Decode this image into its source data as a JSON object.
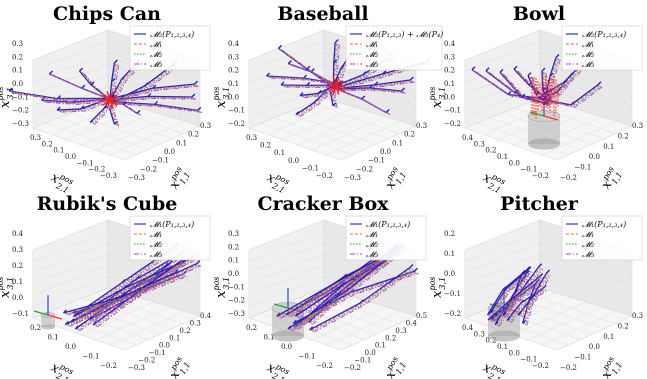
{
  "chart_data": [
    {
      "type": "line",
      "title": "Chips Can",
      "z_axis": {
        "base": "x",
        "sub": "3,1",
        "sup": "pos",
        "ticks": [
          "0.3",
          "0.2",
          "0.1",
          "0.0",
          "−0.1",
          "−0.2",
          "−0.3"
        ]
      },
      "y_axis": {
        "base": "x",
        "sub": "2,1",
        "sup": "pos",
        "ticks": [
          "0.3",
          "0.2",
          "0.1",
          "0.0",
          "−0.1",
          "−0.2",
          "−0.3"
        ]
      },
      "x_axis": {
        "base": "x",
        "sub": "1,1",
        "sup": "pos",
        "ticks": [
          "−0.3",
          "−0.2",
          "−0.1",
          "0.0",
          "0.1",
          "0.2",
          "0.3"
        ]
      },
      "legend": [
        "𝓜₂(P₁,₂,₃,₄)",
        "𝓜₁",
        "𝓜₂",
        "𝓜₃"
      ],
      "has_object": false
    },
    {
      "type": "line",
      "title": "Baseball",
      "z_axis": {
        "base": "x",
        "sub": "3,1",
        "sup": "pos",
        "ticks": [
          "0.4",
          "0.3",
          "0.2",
          "0.1",
          "0.0",
          "−0.1",
          "−0.2"
        ]
      },
      "y_axis": {
        "base": "x",
        "sub": "2,1",
        "sup": "pos",
        "ticks": [
          "0.3",
          "0.2",
          "0.1",
          "0.0",
          "−0.1",
          "−0.2"
        ]
      },
      "x_axis": {
        "base": "x",
        "sub": "1,1",
        "sup": "pos",
        "ticks": [
          "−0.3",
          "−0.2",
          "−0.1",
          "0.0",
          "0.1",
          "0.2",
          "0.3"
        ]
      },
      "legend": [
        "𝓜₂(P₁,₂,₃) + 𝓜₃(P₄)",
        "𝓜₁",
        "𝓜₂",
        "𝓜₃"
      ],
      "has_object": false
    },
    {
      "type": "line",
      "title": "Bowl",
      "z_axis": {
        "base": "x",
        "sub": "3,1",
        "sup": "pos",
        "ticks": [
          "0.4",
          "0.3",
          "0.2",
          "0.1",
          "0.0",
          "−0.1",
          "−0.2"
        ]
      },
      "y_axis": {
        "base": "x",
        "sub": "2,1",
        "sup": "pos",
        "ticks": [
          "0.4",
          "0.3",
          "0.2",
          "0.1",
          "0.0",
          "−0.1",
          "−0.2"
        ]
      },
      "x_axis": {
        "base": "x",
        "sub": "1,1",
        "sup": "pos",
        "ticks": [
          "−0.2",
          "−0.1",
          "0.0",
          "0.1",
          "0.2",
          "0.3"
        ]
      },
      "legend": [
        "𝓜₂(P₁,₂,₃,₄)",
        "𝓜₁",
        "𝓜₂",
        "𝓜₃"
      ],
      "has_object": true
    },
    {
      "type": "line",
      "title": "Rubik's Cube",
      "z_axis": {
        "base": "x",
        "sub": "3,1",
        "sup": "pos",
        "ticks": [
          "0.4",
          "0.3",
          "0.2",
          "0.1",
          "0.0",
          "−0.1"
        ]
      },
      "y_axis": {
        "base": "x",
        "sub": "2,1",
        "sup": "pos",
        "ticks": [
          "0.2",
          "0.1",
          "0.0",
          "−0.1",
          "−0.2"
        ]
      },
      "x_axis": {
        "base": "x",
        "sub": "1,1",
        "sup": "pos",
        "ticks": [
          "−0.3",
          "−0.2",
          "−0.1",
          "0.0",
          "0.1",
          "0.2",
          "0.3",
          "0.4"
        ]
      },
      "legend": [
        "𝓜₁(P₁,₂,₃,₄)",
        "𝓜₁",
        "𝓜₂",
        "𝓜₃"
      ],
      "has_object": true
    },
    {
      "type": "line",
      "title": "Cracker Box",
      "z_axis": {
        "base": "x",
        "sub": "3,1",
        "sup": "pos",
        "ticks": [
          "0.3",
          "0.2",
          "0.1",
          "0.0",
          "−0.1",
          "−0.2",
          "−0.3"
        ]
      },
      "y_axis": {
        "base": "x",
        "sub": "2,1",
        "sup": "pos",
        "ticks": [
          "0.2",
          "0.1",
          "0.0",
          "−0.1",
          "−0.2"
        ]
      },
      "x_axis": {
        "base": "x",
        "sub": "1,1",
        "sup": "pos",
        "ticks": [
          "−0.2",
          "−0.1",
          "0.0",
          "0.1",
          "0.2",
          "0.3",
          "0.4",
          "0.5"
        ]
      },
      "legend": [
        "𝓜₁(P₁,₂,₃,₄)",
        "𝓜₁",
        "𝓜₂",
        "𝓜₃"
      ],
      "has_object": true
    },
    {
      "type": "line",
      "title": "Pitcher",
      "z_axis": {
        "base": "x",
        "sub": "3,1",
        "sup": "pos",
        "ticks": [
          "0.2",
          "0.1",
          "0.0",
          "−0.1",
          "−0.2"
        ]
      },
      "y_axis": {
        "base": "x",
        "sub": "2,1",
        "sup": "pos",
        "ticks": [
          "0.4",
          "0.3",
          "0.2",
          "0.1",
          "0.0",
          "−0.1",
          "−0.2"
        ]
      },
      "x_axis": {
        "base": "x",
        "sub": "1,1",
        "sup": "pos",
        "ticks": [
          "−0.2",
          "−0.1",
          "0.0",
          "0.1",
          "0.2",
          "0.3"
        ]
      },
      "legend": [
        "𝓜₁(P₁,₂,₃,₄)",
        "𝓜₁",
        "𝓜₂",
        "𝓜₃"
      ],
      "has_object": true
    }
  ],
  "series_colors": {
    "primary": "#1f4fe0",
    "m1": "#ff5a5a",
    "m2": "#2ca02c",
    "m3": "#c83cc8",
    "gt": "#2020d0",
    "arrow": "#ff1a1a"
  }
}
